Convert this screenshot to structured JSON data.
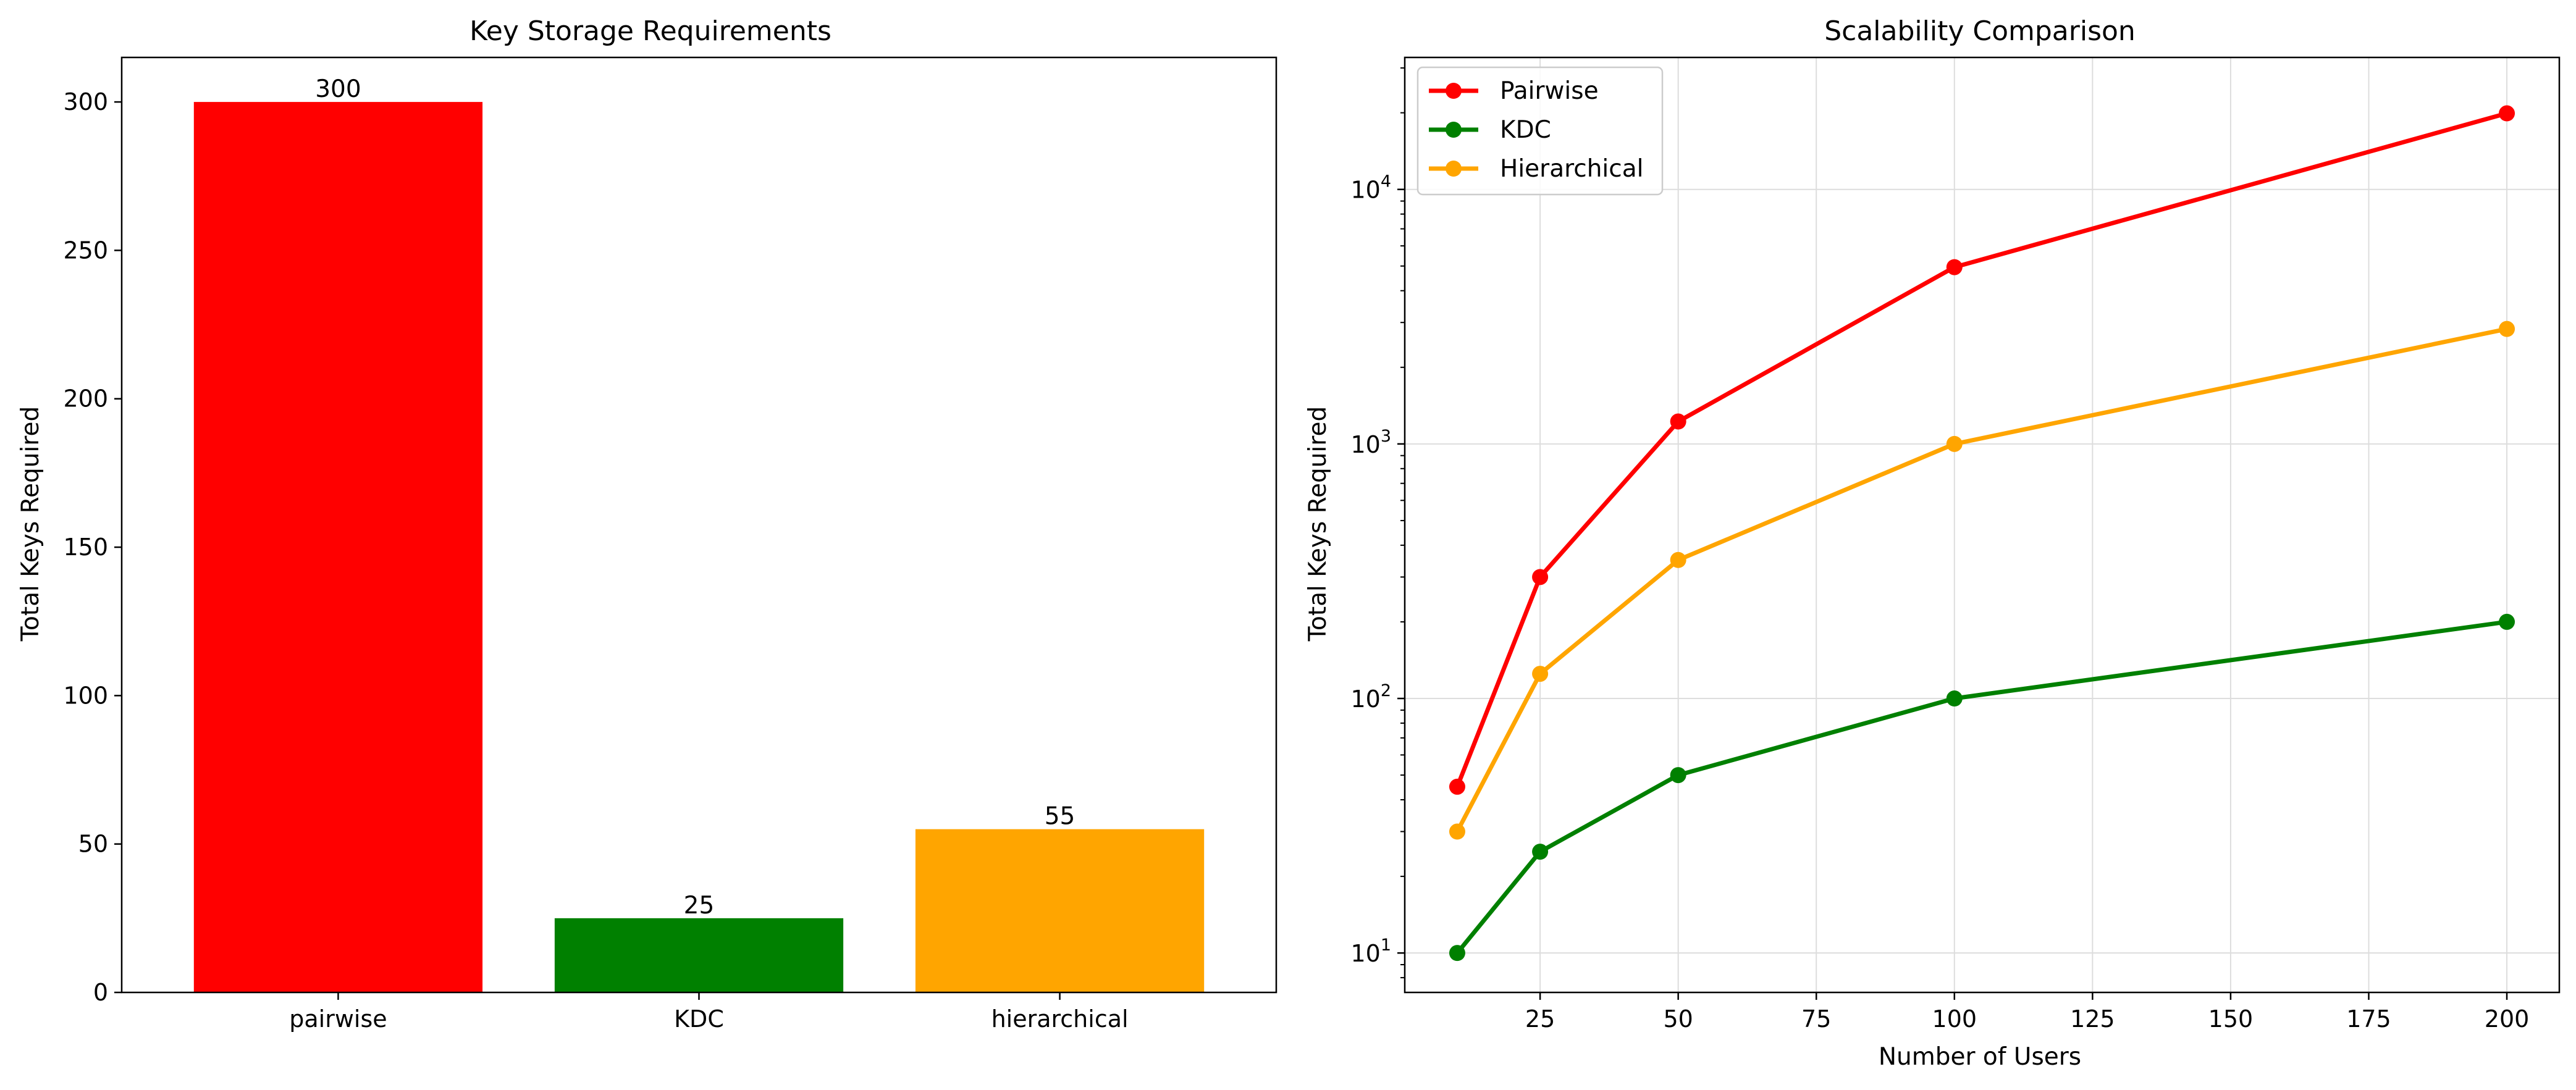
{
  "chart_data": [
    {
      "type": "bar",
      "title": "Key Storage Requirements",
      "xlabel": "",
      "ylabel": "Total Keys Required",
      "categories": [
        "pairwise",
        "KDC",
        "hierarchical"
      ],
      "values": [
        300,
        25,
        55
      ],
      "data_labels": [
        "300",
        "25",
        "55"
      ],
      "colors": [
        "#ff0000",
        "#008000",
        "#ffa500"
      ],
      "ylim": [
        0,
        315
      ],
      "yticks": [
        0,
        50,
        100,
        150,
        200,
        250,
        300
      ],
      "ytick_labels": [
        "0",
        "50",
        "100",
        "150",
        "200",
        "250",
        "300"
      ],
      "grid": false
    },
    {
      "type": "line",
      "title": "Scalability Comparison",
      "xlabel": "Number of Users",
      "ylabel": "Total Keys Required",
      "yscale": "log",
      "x": [
        10,
        25,
        50,
        100,
        200
      ],
      "series": [
        {
          "name": "Pairwise",
          "color": "#ff0000",
          "values": [
            45,
            300,
            1225,
            4950,
            19900
          ]
        },
        {
          "name": "KDC",
          "color": "#008000",
          "values": [
            10,
            25,
            50,
            100,
            200
          ]
        },
        {
          "name": "Hierarchical",
          "color": "#ffa500",
          "values": [
            30,
            125,
            350,
            1000,
            2830
          ]
        }
      ],
      "xlim": [
        0.5,
        209.5
      ],
      "ylim": [
        7,
        33000
      ],
      "xticks": [
        25,
        50,
        75,
        100,
        125,
        150,
        175,
        200
      ],
      "xtick_labels": [
        "25",
        "50",
        "75",
        "100",
        "125",
        "150",
        "175",
        "200"
      ],
      "yticks": [
        10,
        100,
        1000,
        10000
      ],
      "ytick_labels": [
        {
          "base": "10",
          "exp": "1"
        },
        {
          "base": "10",
          "exp": "2"
        },
        {
          "base": "10",
          "exp": "3"
        },
        {
          "base": "10",
          "exp": "4"
        }
      ],
      "grid": true,
      "legend_position": "top-left"
    }
  ]
}
